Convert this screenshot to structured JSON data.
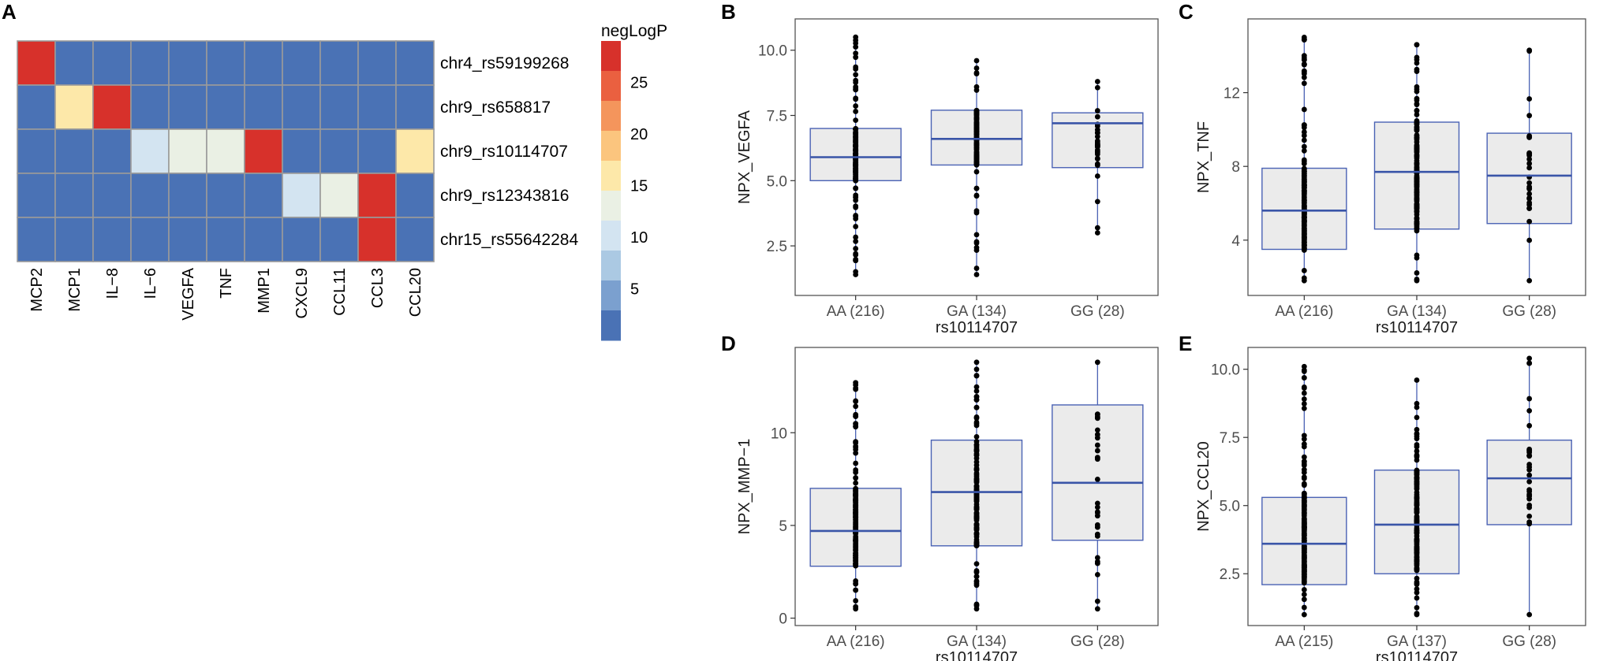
{
  "colors": {
    "box_fill": "#ebebeb",
    "box_stroke": "#4a62b4",
    "median": "#3a55a8",
    "whisker": "#4a62b4",
    "dot": "#000000",
    "panel_border": "#555555",
    "cell_border": "#9a9a9a"
  },
  "chart_data": [
    {
      "id": "A",
      "type": "heatmap",
      "panel_label": "A",
      "columns": [
        "MCP2",
        "MCP1",
        "IL−8",
        "IL−6",
        "VEGFA",
        "TNF",
        "MMP1",
        "CXCL9",
        "CCL11",
        "CCL3",
        "CCL20"
      ],
      "rows": [
        "chr4_rs59199268",
        "chr9_rs658817",
        "chr9_rs10114707",
        "chr9_rs12343816",
        "chr15_rs55642284"
      ],
      "values": [
        [
          27,
          1,
          1,
          1,
          1,
          1,
          1,
          1,
          1,
          1,
          1
        ],
        [
          1,
          15,
          27,
          1,
          1,
          1,
          1,
          1,
          1,
          1,
          1
        ],
        [
          1,
          1,
          1,
          10,
          13,
          13,
          27,
          1,
          1,
          1,
          15
        ],
        [
          1,
          1,
          1,
          1,
          1,
          1,
          1,
          10,
          13,
          27,
          1
        ],
        [
          1,
          1,
          1,
          1,
          1,
          1,
          1,
          1,
          1,
          27,
          1
        ]
      ],
      "legend": {
        "title": "negLogP",
        "ticks": [
          "25",
          "20",
          "15",
          "10",
          "5"
        ],
        "tick_values": [
          25,
          20,
          15,
          10,
          5
        ],
        "range": [
          0,
          29
        ],
        "bins": [
          "#d7312b",
          "#ea6040",
          "#f4955c",
          "#fbc57e",
          "#fde8a9",
          "#eaf0e4",
          "#d3e4f1",
          "#abc9e3",
          "#7ba0cf",
          "#4a72b5"
        ]
      }
    },
    {
      "id": "B",
      "type": "box",
      "panel_label": "B",
      "ylabel": "NPX_VEGFA",
      "xlabel": "rs10114707",
      "ylim": [
        0.6,
        11.2
      ],
      "yticks": [
        2.5,
        5.0,
        7.5,
        10.0
      ],
      "ytick_labels": [
        "2.5",
        "5.0",
        "7.5",
        "10.0"
      ],
      "groups": [
        {
          "label": "AA (216)",
          "q1": 5.0,
          "median": 5.9,
          "q3": 7.0,
          "whisker_low": 1.4,
          "whisker_high": 10.5,
          "n": 216
        },
        {
          "label": "GA (134)",
          "q1": 5.6,
          "median": 6.6,
          "q3": 7.7,
          "whisker_low": 1.4,
          "whisker_high": 9.6,
          "n": 134
        },
        {
          "label": "GG (28)",
          "q1": 5.5,
          "median": 7.2,
          "q3": 7.6,
          "whisker_low": 3.0,
          "whisker_high": 8.8,
          "n": 28
        }
      ]
    },
    {
      "id": "C",
      "type": "box",
      "panel_label": "C",
      "ylabel": "NPX_TNF",
      "xlabel": "rs10114707",
      "ylim": [
        1.0,
        16.0
      ],
      "yticks": [
        4,
        8,
        12
      ],
      "ytick_labels": [
        "4",
        "8",
        "12"
      ],
      "groups": [
        {
          "label": "AA (216)",
          "q1": 3.5,
          "median": 5.6,
          "q3": 7.9,
          "whisker_low": 1.8,
          "whisker_high": 15.0,
          "n": 216
        },
        {
          "label": "GA (134)",
          "q1": 4.6,
          "median": 7.7,
          "q3": 10.4,
          "whisker_low": 1.8,
          "whisker_high": 14.6,
          "n": 134
        },
        {
          "label": "GG (28)",
          "q1": 4.9,
          "median": 7.5,
          "q3": 9.8,
          "whisker_low": 1.8,
          "whisker_high": 14.3,
          "n": 28
        }
      ]
    },
    {
      "id": "D",
      "type": "box",
      "panel_label": "D",
      "ylabel": "NPX_MMP−1",
      "xlabel": "rs10114707",
      "ylim": [
        -0.4,
        14.6
      ],
      "yticks": [
        0,
        5,
        10
      ],
      "ytick_labels": [
        "0",
        "5",
        "10"
      ],
      "groups": [
        {
          "label": "AA (216)",
          "q1": 2.8,
          "median": 4.7,
          "q3": 7.0,
          "whisker_low": 0.5,
          "whisker_high": 12.7,
          "n": 216
        },
        {
          "label": "GA (134)",
          "q1": 3.9,
          "median": 6.8,
          "q3": 9.6,
          "whisker_low": 0.5,
          "whisker_high": 13.8,
          "n": 134
        },
        {
          "label": "GG (28)",
          "q1": 4.2,
          "median": 7.3,
          "q3": 11.5,
          "whisker_low": 0.5,
          "whisker_high": 13.8,
          "n": 28
        }
      ]
    },
    {
      "id": "E",
      "type": "box",
      "panel_label": "E",
      "ylabel": "NPX_CCL20",
      "xlabel": "rs10114707",
      "ylim": [
        0.6,
        10.8
      ],
      "yticks": [
        2.5,
        5.0,
        7.5,
        10.0
      ],
      "ytick_labels": [
        "2.5",
        "5.0",
        "7.5",
        "10.0"
      ],
      "groups": [
        {
          "label": "AA (215)",
          "q1": 2.1,
          "median": 3.6,
          "q3": 5.3,
          "whisker_low": 1.0,
          "whisker_high": 10.1,
          "n": 215
        },
        {
          "label": "GA (137)",
          "q1": 2.5,
          "median": 4.3,
          "q3": 6.3,
          "whisker_low": 1.0,
          "whisker_high": 9.6,
          "n": 137
        },
        {
          "label": "GG (28)",
          "q1": 4.3,
          "median": 6.0,
          "q3": 7.4,
          "whisker_low": 1.0,
          "whisker_high": 10.4,
          "n": 28
        }
      ]
    }
  ]
}
